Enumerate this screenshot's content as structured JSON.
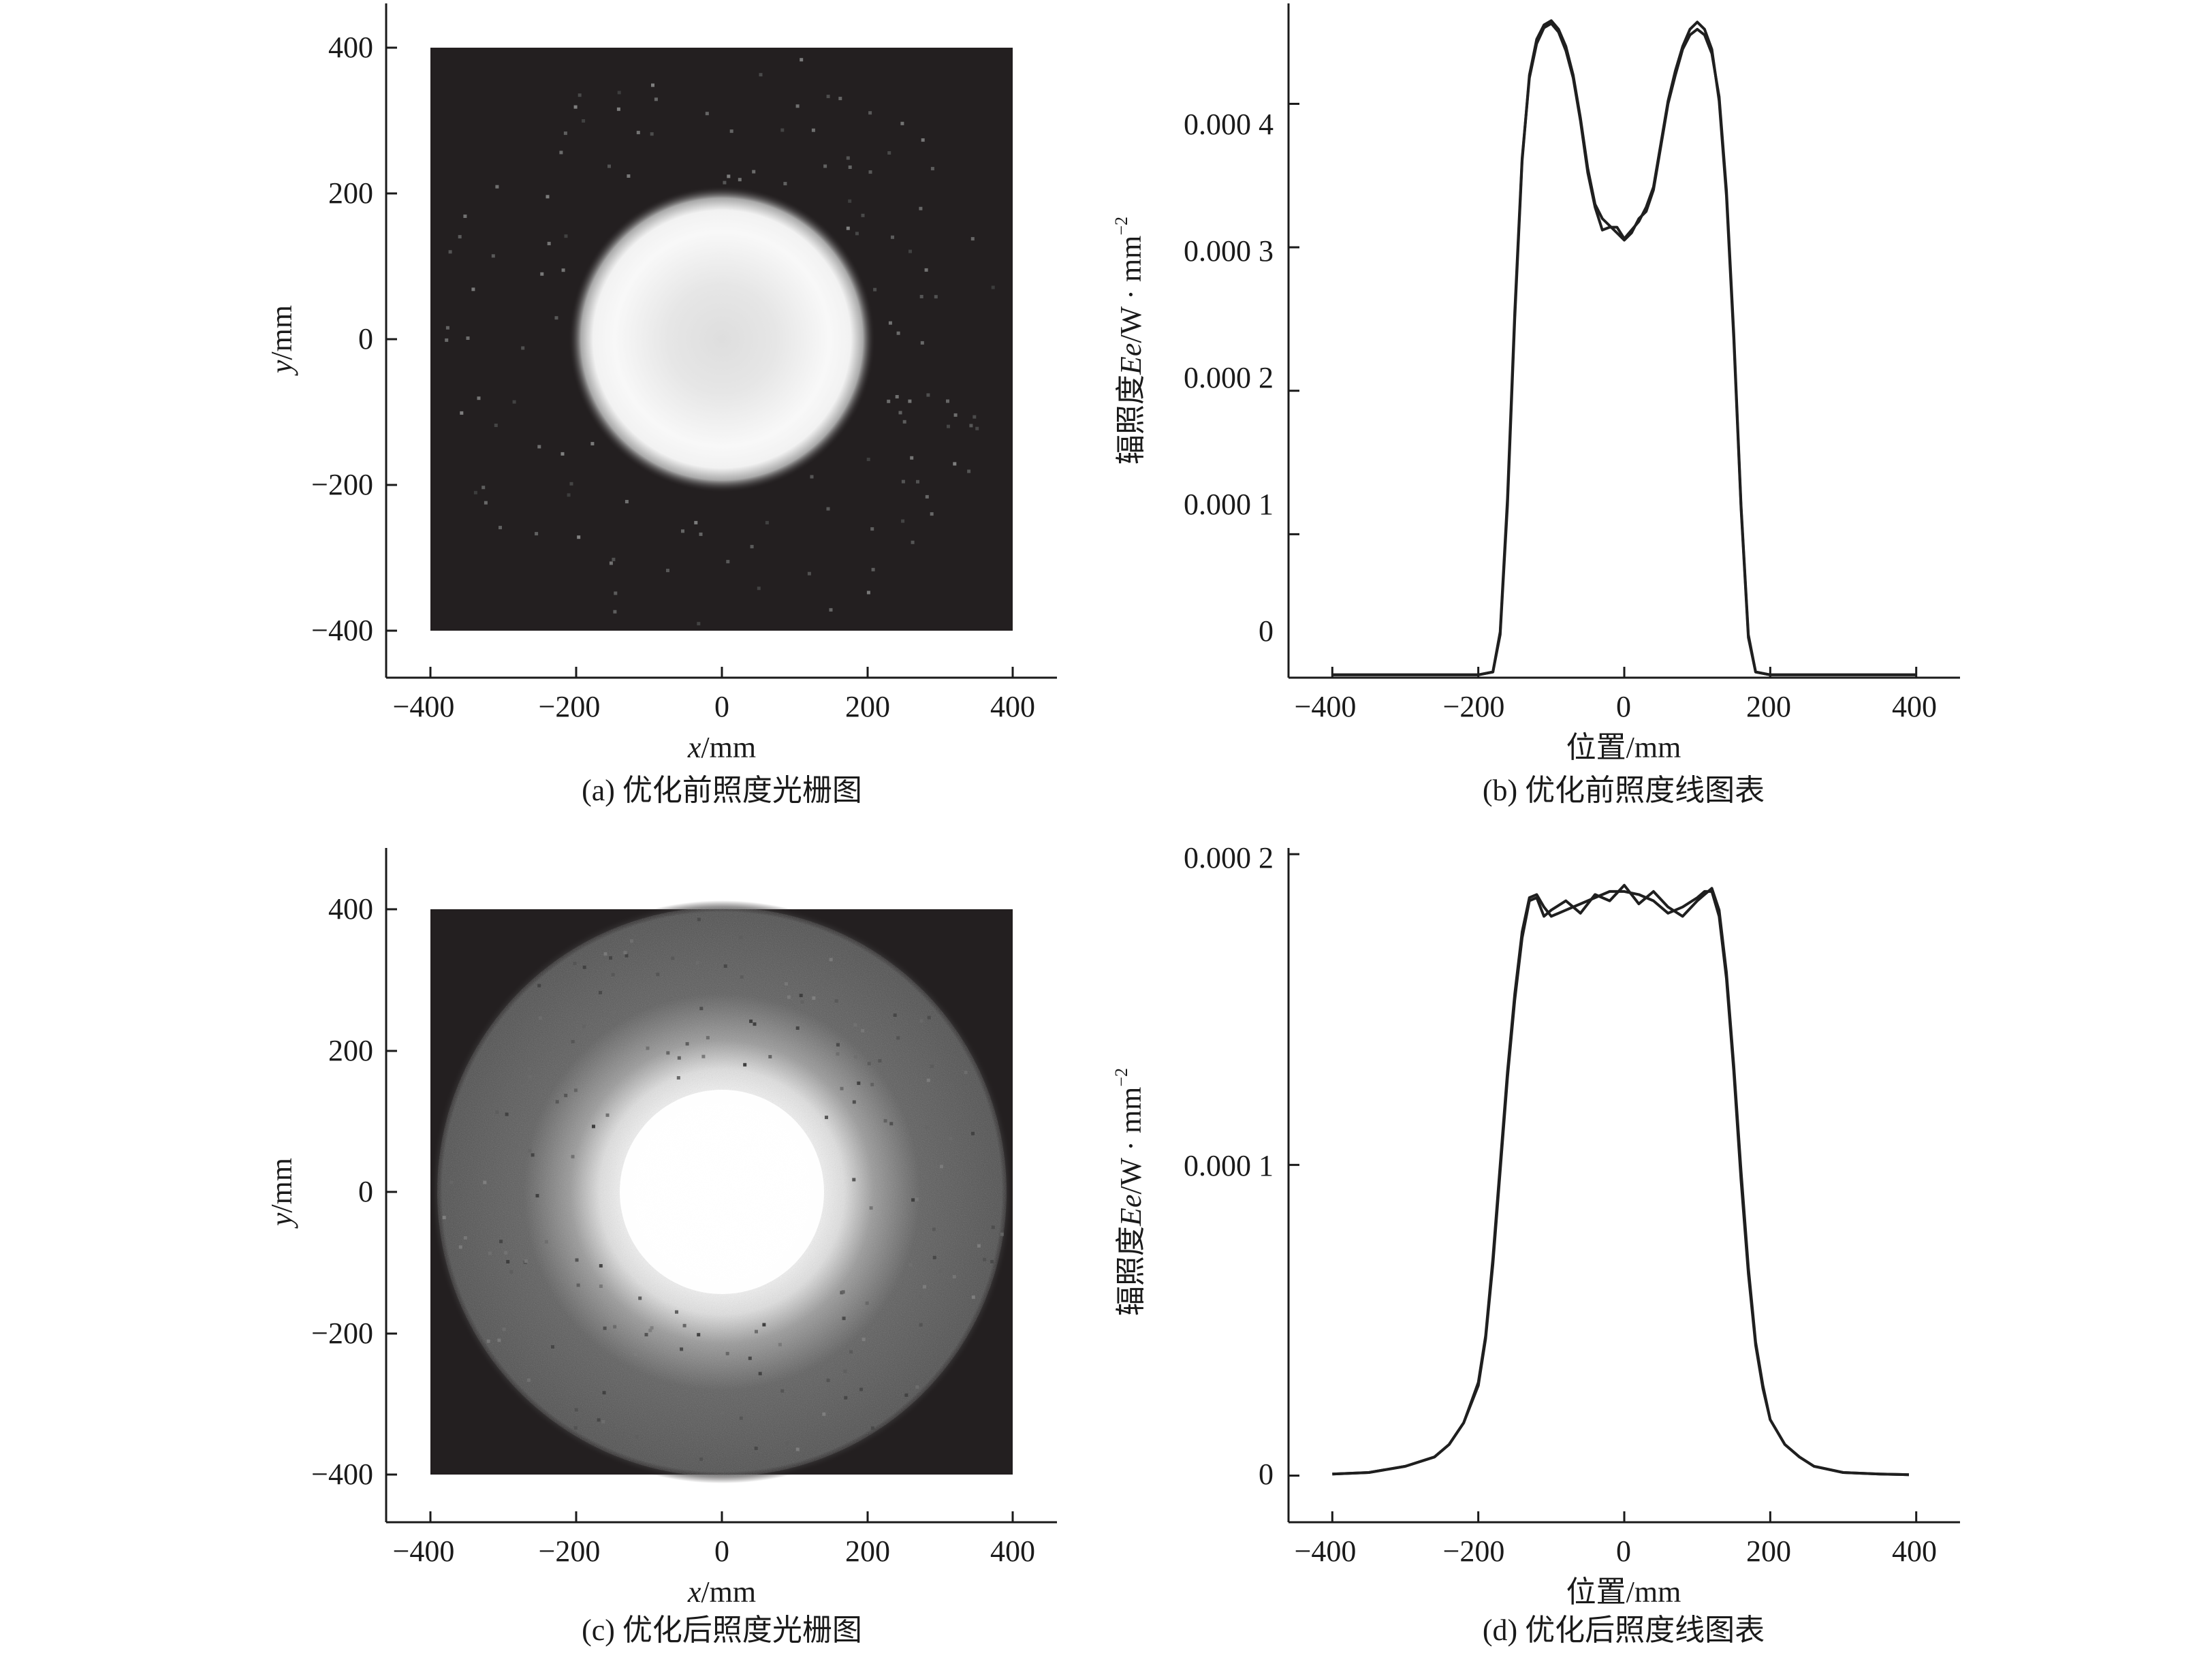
{
  "panels": [
    {
      "id": "a",
      "caption": "(a) 优化前照度光栅图",
      "xlabel_var": "x",
      "xlabel_unit": "/mm",
      "ylabel_var": "y",
      "ylabel_unit": "/mm",
      "tick_labels": [
        "−400",
        "−200",
        "0",
        "200",
        "400"
      ]
    },
    {
      "id": "b",
      "caption": "(b) 优化前照度线图表",
      "xlabel": "位置/mm",
      "ylabel_prefix": "辐照度",
      "ylabel_var": "Ee",
      "ylabel_suffix": "/W · mm",
      "ylabel_exp": "−2",
      "x_tick_labels": [
        "−400",
        "−200",
        "0",
        "200",
        "400"
      ],
      "y_tick_labels": [
        "0",
        "0.000 1",
        "0.000 2",
        "0.000 3",
        "0.000 4"
      ]
    },
    {
      "id": "c",
      "caption": "(c) 优化后照度光栅图",
      "xlabel_var": "x",
      "xlabel_unit": "/mm",
      "ylabel_var": "y",
      "ylabel_unit": "/mm",
      "tick_labels": [
        "−400",
        "−200",
        "0",
        "200",
        "400"
      ]
    },
    {
      "id": "d",
      "caption": "(d) 优化后照度线图表",
      "xlabel": "位置/mm",
      "ylabel_prefix": "辐照度",
      "ylabel_var": "Ee",
      "ylabel_suffix": "/W · mm",
      "ylabel_exp": "−2",
      "x_tick_labels": [
        "−400",
        "−200",
        "0",
        "200",
        "400"
      ],
      "y_tick_labels": [
        "0",
        "0.000 1",
        "0.000 2"
      ]
    }
  ],
  "chart_data": [
    {
      "type": "heatmap",
      "panel": "a",
      "xlim": [
        -400,
        400
      ],
      "ylim": [
        -400,
        400
      ],
      "extent": [
        -400,
        400,
        -400,
        400
      ],
      "colormap": "grayscale",
      "background": "#231f20",
      "spot": {
        "center": [
          0,
          0
        ],
        "radius": 175,
        "edge_width": 25,
        "center_level": 0.85,
        "ring_level": 1.0,
        "halo_radius": 0,
        "halo_level": 0
      },
      "noise_dots": 0.03
    },
    {
      "type": "line",
      "panel": "b",
      "xlim": [
        -460,
        460
      ],
      "ylim": [
        0,
        0.00047
      ],
      "xticks": [
        -400,
        -200,
        0,
        200,
        400
      ],
      "yticks": [
        0,
        0.0001,
        0.0002,
        0.0003,
        0.0004
      ],
      "series": [
        {
          "x": [
            -400,
            -300,
            -200,
            -180,
            -170,
            -160,
            -150,
            -140,
            -130,
            -120,
            -110,
            -100,
            -90,
            -80,
            -70,
            -60,
            -50,
            -40,
            -30,
            -20,
            -10,
            0,
            10,
            20,
            30,
            40,
            50,
            60,
            70,
            80,
            90,
            100,
            110,
            120,
            130,
            140,
            150,
            160,
            170,
            180,
            200,
            300,
            400
          ],
          "y": [
            2e-06,
            2e-06,
            2e-06,
            4e-06,
            3e-05,
            0.00012,
            0.00025,
            0.00036,
            0.00042,
            0.000445,
            0.000455,
            0.000458,
            0.000452,
            0.00044,
            0.00042,
            0.00039,
            0.000355,
            0.00033,
            0.00032,
            0.000315,
            0.00031,
            0.000305,
            0.00031,
            0.00032,
            0.000325,
            0.00034,
            0.00037,
            0.0004,
            0.00042,
            0.000438,
            0.000448,
            0.000452,
            0.000448,
            0.000435,
            0.000405,
            0.00034,
            0.00024,
            0.00012,
            3e-05,
            4e-06,
            2e-06,
            2e-06,
            2e-06
          ]
        },
        {
          "x": [
            -400,
            -300,
            -200,
            -180,
            -170,
            -160,
            -150,
            -140,
            -130,
            -120,
            -110,
            -100,
            -90,
            -80,
            -70,
            -60,
            -50,
            -40,
            -30,
            -20,
            -10,
            0,
            10,
            20,
            30,
            40,
            50,
            60,
            70,
            80,
            90,
            100,
            110,
            120,
            130,
            140,
            150,
            160,
            170,
            180,
            200,
            300,
            400
          ],
          "y": [
            2e-06,
            2e-06,
            2e-06,
            4e-06,
            3.2e-05,
            0.000125,
            0.000255,
            0.000362,
            0.000418,
            0.000442,
            0.000453,
            0.000456,
            0.00045,
            0.000437,
            0.000418,
            0.000388,
            0.000352,
            0.000328,
            0.000312,
            0.000314,
            0.000314,
            0.000306,
            0.000312,
            0.000318,
            0.000328,
            0.000342,
            0.000372,
            0.000402,
            0.000423,
            0.00044,
            0.000452,
            0.000457,
            0.000452,
            0.000438,
            0.000402,
            0.000336,
            0.000236,
            0.000118,
            2.8e-05,
            4e-06,
            2e-06,
            2e-06,
            2e-06
          ]
        }
      ]
    },
    {
      "type": "heatmap",
      "panel": "c",
      "xlim": [
        -400,
        400
      ],
      "ylim": [
        -400,
        400
      ],
      "extent": [
        -400,
        400,
        -400,
        400
      ],
      "colormap": "grayscale",
      "background": "#231f20",
      "spot": {
        "center": [
          0,
          0
        ],
        "radius": 175,
        "edge_width": 60,
        "center_level": 1.0,
        "ring_level": 1.0,
        "halo_radius": 400,
        "halo_level": 0.32
      },
      "noise_dots": 0.35
    },
    {
      "type": "line",
      "panel": "d",
      "xlim": [
        -460,
        460
      ],
      "ylim": [
        -1.5e-05,
        0.000202
      ],
      "xticks": [
        -400,
        -200,
        0,
        200,
        400
      ],
      "yticks": [
        0,
        0.0001,
        0.0002
      ],
      "series": [
        {
          "x": [
            -400,
            -350,
            -300,
            -260,
            -240,
            -220,
            -200,
            -190,
            -180,
            -170,
            -160,
            -150,
            -140,
            -130,
            -120,
            -110,
            -100,
            -80,
            -60,
            -40,
            -20,
            0,
            20,
            40,
            60,
            80,
            100,
            110,
            120,
            130,
            140,
            150,
            160,
            170,
            180,
            190,
            200,
            220,
            240,
            260,
            300,
            350,
            390
          ],
          "y": [
            5e-07,
            1e-06,
            3e-06,
            6e-06,
            1e-05,
            1.7e-05,
            3e-05,
            4.5e-05,
            7e-05,
            0.0001,
            0.00013,
            0.000155,
            0.000175,
            0.000186,
            0.000187,
            0.000183,
            0.00018,
            0.000182,
            0.000184,
            0.000186,
            0.000188,
            0.000188,
            0.000187,
            0.000185,
            0.000181,
            0.000183,
            0.000186,
            0.000188,
            0.000188,
            0.00018,
            0.00016,
            0.00013,
            9.5e-05,
            6.5e-05,
            4.2e-05,
            2.8e-05,
            1.8e-05,
            1e-05,
            6e-06,
            3e-06,
            1e-06,
            5e-07,
            3e-07
          ]
        },
        {
          "x": [
            -400,
            -350,
            -300,
            -260,
            -240,
            -220,
            -200,
            -190,
            -180,
            -170,
            -160,
            -150,
            -140,
            -130,
            -120,
            -110,
            -100,
            -80,
            -60,
            -40,
            -20,
            0,
            20,
            40,
            60,
            80,
            100,
            110,
            120,
            130,
            140,
            150,
            160,
            170,
            180,
            190,
            200,
            220,
            240,
            260,
            300,
            350,
            390
          ],
          "y": [
            5e-07,
            1e-06,
            3e-06,
            6e-06,
            1e-05,
            1.7e-05,
            2.9e-05,
            4.4e-05,
            6.8e-05,
            9.8e-05,
            0.000128,
            0.000153,
            0.000173,
            0.000185,
            0.000186,
            0.00018,
            0.000182,
            0.000185,
            0.000181,
            0.000187,
            0.000185,
            0.00019,
            0.000184,
            0.000188,
            0.000183,
            0.00018,
            0.000185,
            0.000187,
            0.000189,
            0.000182,
            0.000162,
            0.000132,
            9.8e-05,
            6.7e-05,
            4.3e-05,
            2.9e-05,
            1.8e-05,
            1e-05,
            6e-06,
            3e-06,
            1e-06,
            5e-07,
            3e-07
          ]
        }
      ]
    }
  ]
}
